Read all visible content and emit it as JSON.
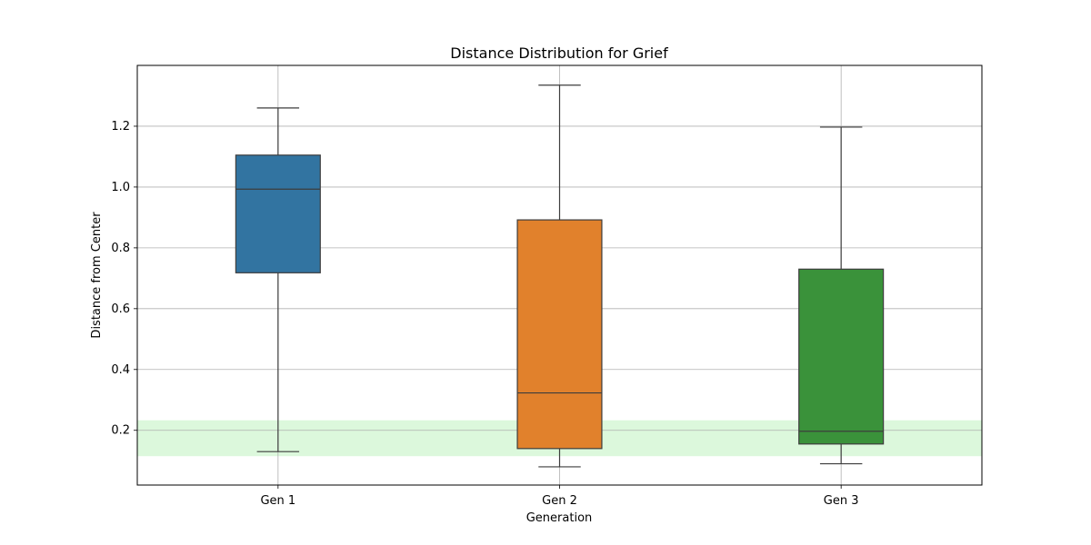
{
  "chart_data": {
    "type": "box",
    "title": "Distance Distribution for Grief",
    "xlabel": "Generation",
    "ylabel": "Distance from Center",
    "ylim": [
      0.02,
      1.4
    ],
    "yticks": [
      0.2,
      0.4,
      0.6,
      0.8,
      1.0,
      1.2
    ],
    "ytick_labels": [
      "0.2",
      "0.4",
      "0.6",
      "0.8",
      "1.0",
      "1.2"
    ],
    "grid": true,
    "reference_band": {
      "low": 0.115,
      "high": 0.233,
      "color": "#dcf8dc"
    },
    "categories": [
      "Gen 1",
      "Gen 2",
      "Gen 3"
    ],
    "boxes": [
      {
        "category": "Gen 1",
        "whisker_low": 0.13,
        "q1": 0.718,
        "median": 0.993,
        "q3": 1.105,
        "whisker_high": 1.26,
        "color": "#3274a1"
      },
      {
        "category": "Gen 2",
        "whisker_low": 0.08,
        "q1": 0.14,
        "median": 0.323,
        "q3": 0.892,
        "whisker_high": 1.335,
        "color": "#e1812c"
      },
      {
        "category": "Gen 3",
        "whisker_low": 0.09,
        "q1": 0.155,
        "median": 0.197,
        "q3": 0.73,
        "whisker_high": 1.197,
        "color": "#3a923a"
      }
    ]
  }
}
